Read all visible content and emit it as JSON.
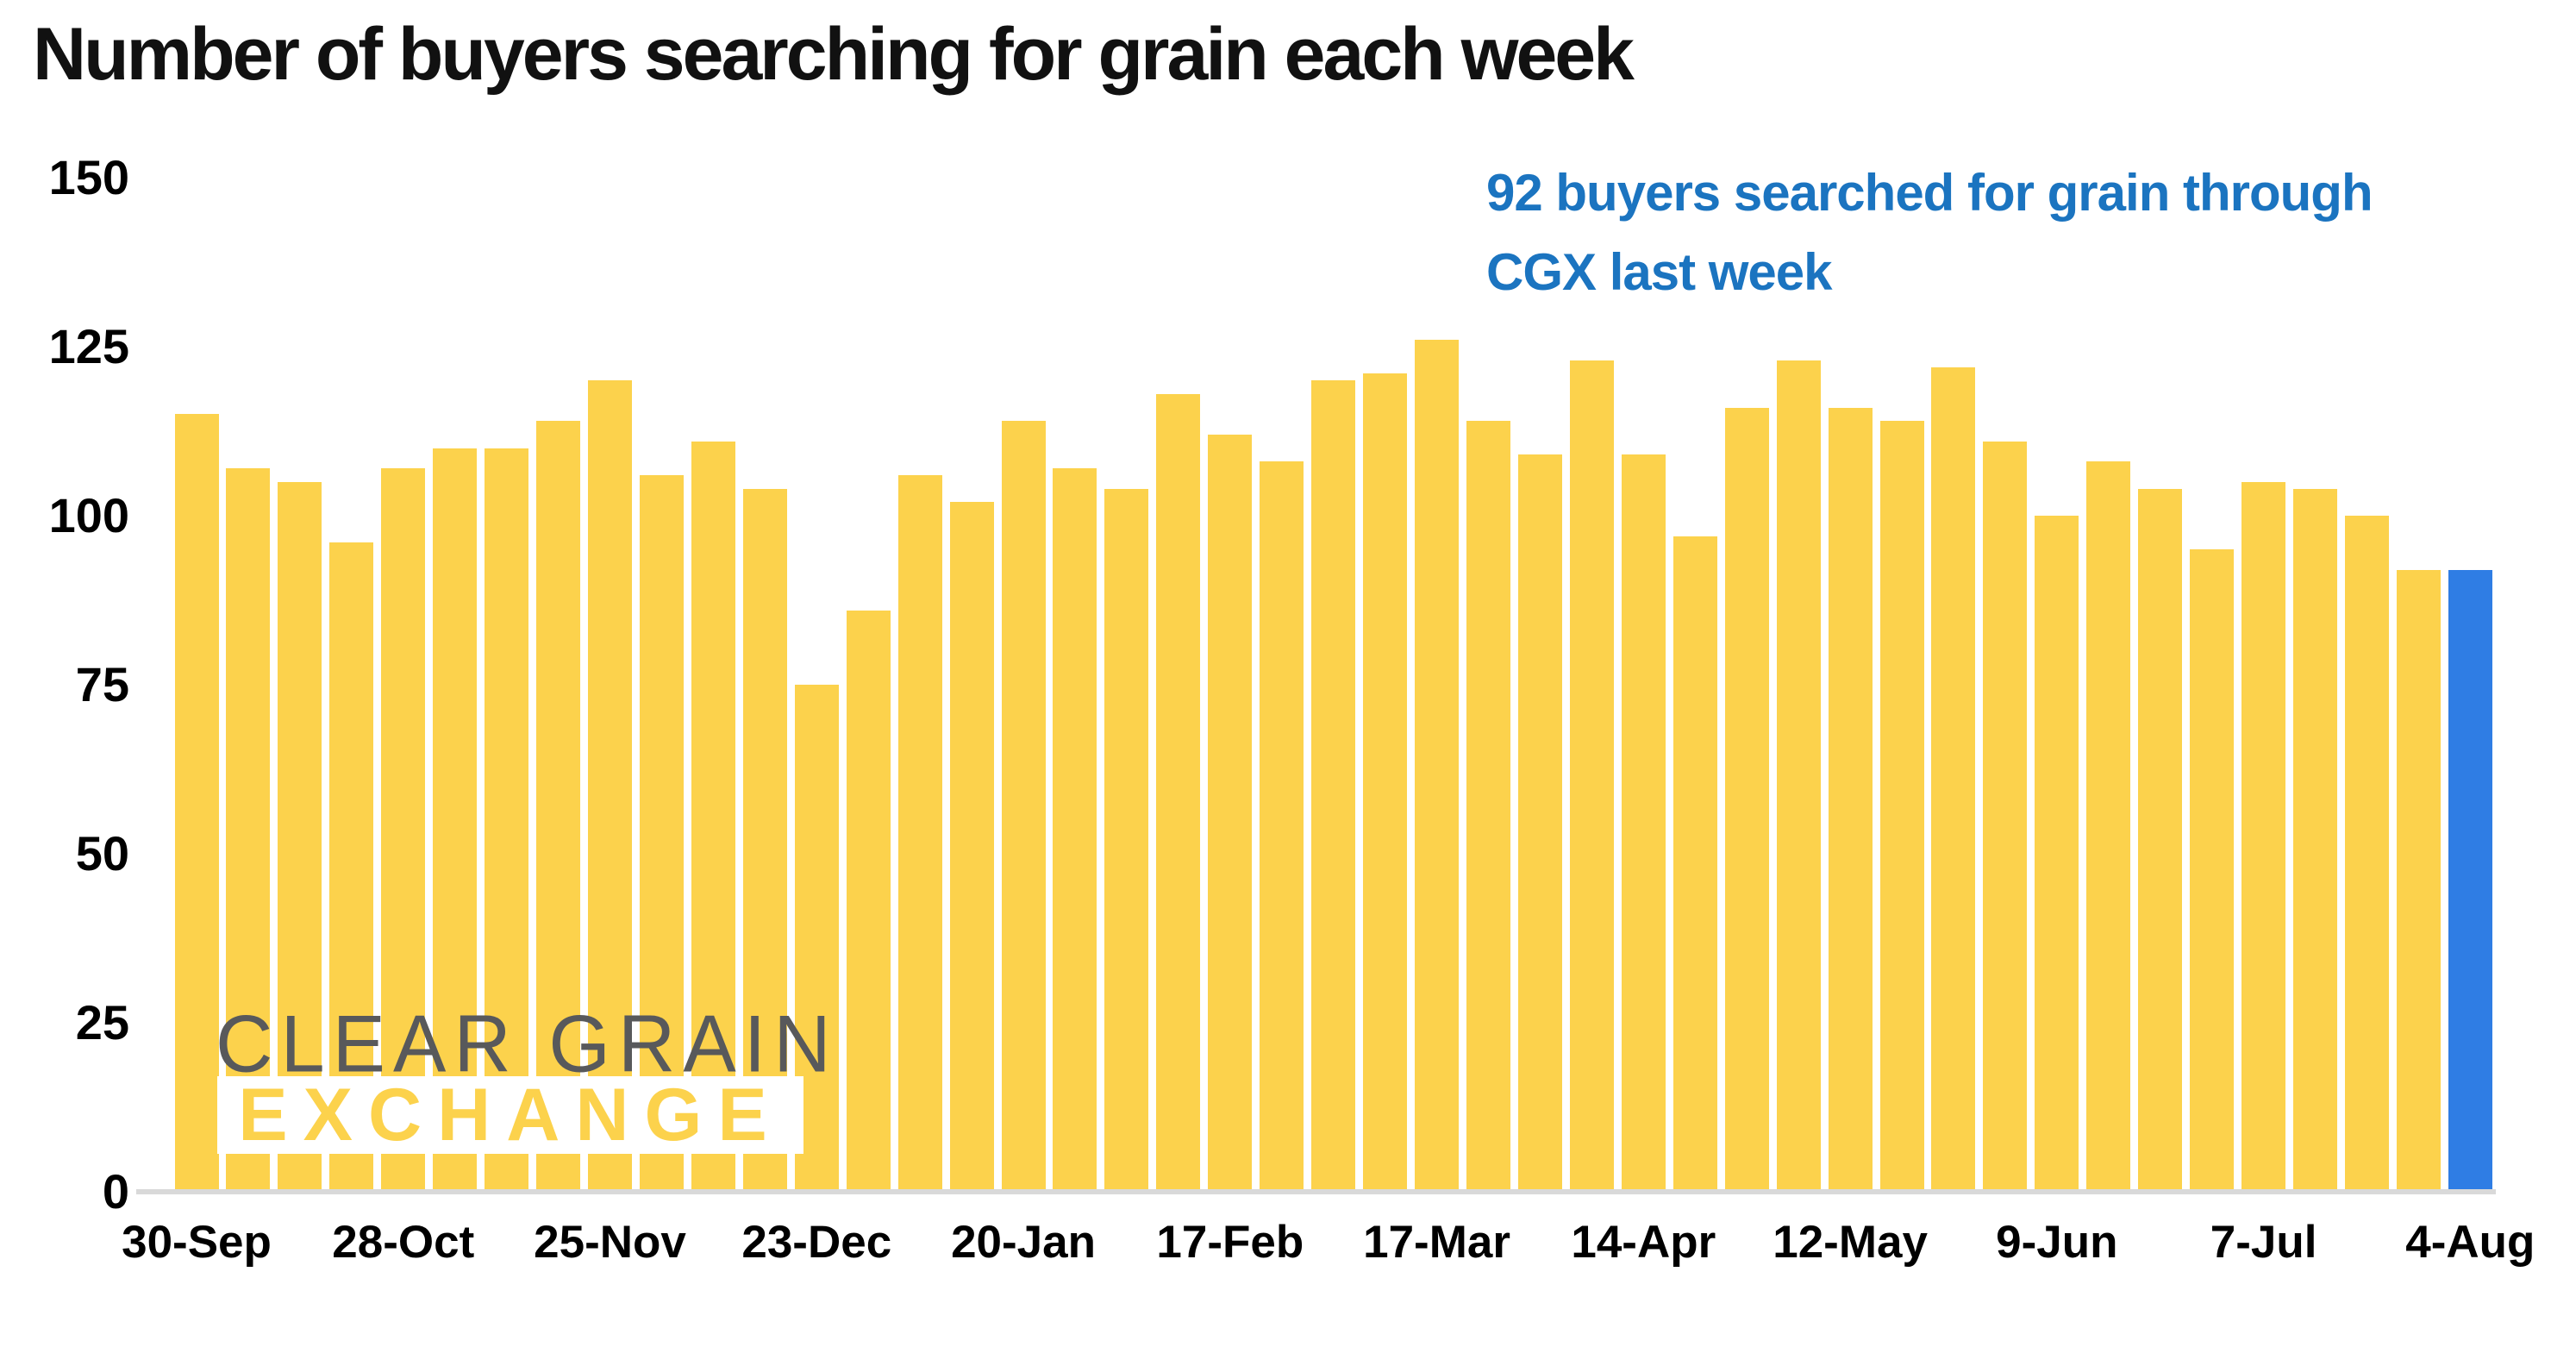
{
  "title": "Number of buyers searching for grain each week",
  "annotation": {
    "line1": "92 buyers searched for grain through",
    "line2": "CGX last week"
  },
  "watermark": {
    "line1": "CLEAR GRAIN",
    "line2": "EXCHANGE"
  },
  "colors": {
    "bar_yellow": "#FCD24C",
    "bar_highlight_blue": "#2F7DE4",
    "annotation_blue": "#1B74C0",
    "title_black": "#111111",
    "axis_line_gray": "#D9D9D9",
    "logo_gray": "#58595B"
  },
  "chart_data": {
    "type": "bar",
    "title": "Number of buyers searching for grain each week",
    "xlabel": "",
    "ylabel": "",
    "ylim": [
      0,
      150
    ],
    "y_ticks": [
      0,
      25,
      50,
      75,
      100,
      125,
      150
    ],
    "grid": false,
    "legend": false,
    "bar_count": 45,
    "x_tick_every": 4,
    "x_tick_labels": [
      "30-Sep",
      "28-Oct",
      "25-Nov",
      "23-Dec",
      "20-Jan",
      "17-Feb",
      "17-Mar",
      "14-Apr",
      "12-May",
      "9-Jun",
      "7-Jul",
      "4-Aug"
    ],
    "values": [
      115,
      107,
      105,
      96,
      107,
      110,
      110,
      114,
      120,
      106,
      111,
      104,
      75,
      86,
      106,
      102,
      114,
      107,
      104,
      118,
      112,
      108,
      120,
      121,
      126,
      114,
      109,
      123,
      109,
      97,
      116,
      123,
      116,
      114,
      122,
      111,
      100,
      108,
      104,
      95,
      105,
      104,
      100,
      92,
      92
    ],
    "highlight_index": 44,
    "highlight_note": "92 buyers searched for grain through CGX last week"
  }
}
